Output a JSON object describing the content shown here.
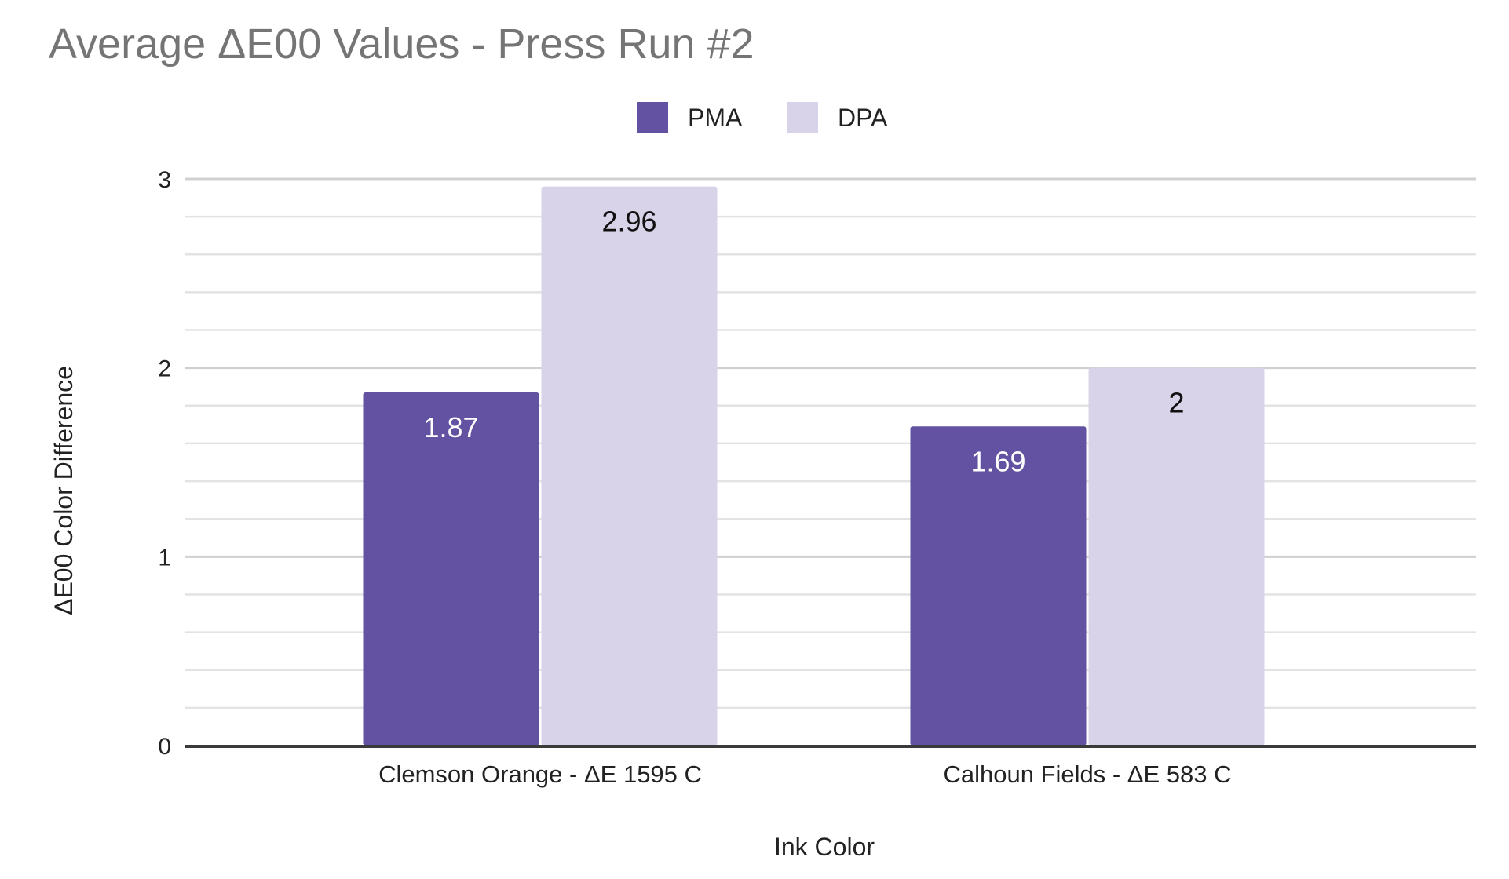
{
  "chart_data": {
    "type": "bar",
    "title": "Average ΔE00 Values - Press Run #2",
    "xlabel": "Ink Color",
    "ylabel": "ΔE00 Color Difference",
    "categories": [
      "Clemson Orange - ΔE 1595 C",
      "Calhoun Fields - ΔE 583 C"
    ],
    "series": [
      {
        "name": "PMA",
        "values": [
          1.87,
          1.69
        ],
        "color": "#6352a1",
        "label_color": "#ffffff"
      },
      {
        "name": "DPA",
        "values": [
          2.96,
          2
        ],
        "color": "#d8d3e8",
        "label_color": "#111111"
      }
    ],
    "data_labels": [
      [
        "1.87",
        "1.69"
      ],
      [
        "2.96",
        "2"
      ]
    ],
    "ylim": [
      0,
      3
    ],
    "yticks": [
      0,
      1,
      2,
      3
    ],
    "ytick_labels": [
      "0",
      "1",
      "2",
      "3"
    ],
    "minor_gridlines": true,
    "legend_position": "top-center",
    "colors": {
      "major_grid": "#d0d0d0",
      "minor_grid": "#e3e3e3",
      "baseline": "#3a3a3a"
    }
  }
}
